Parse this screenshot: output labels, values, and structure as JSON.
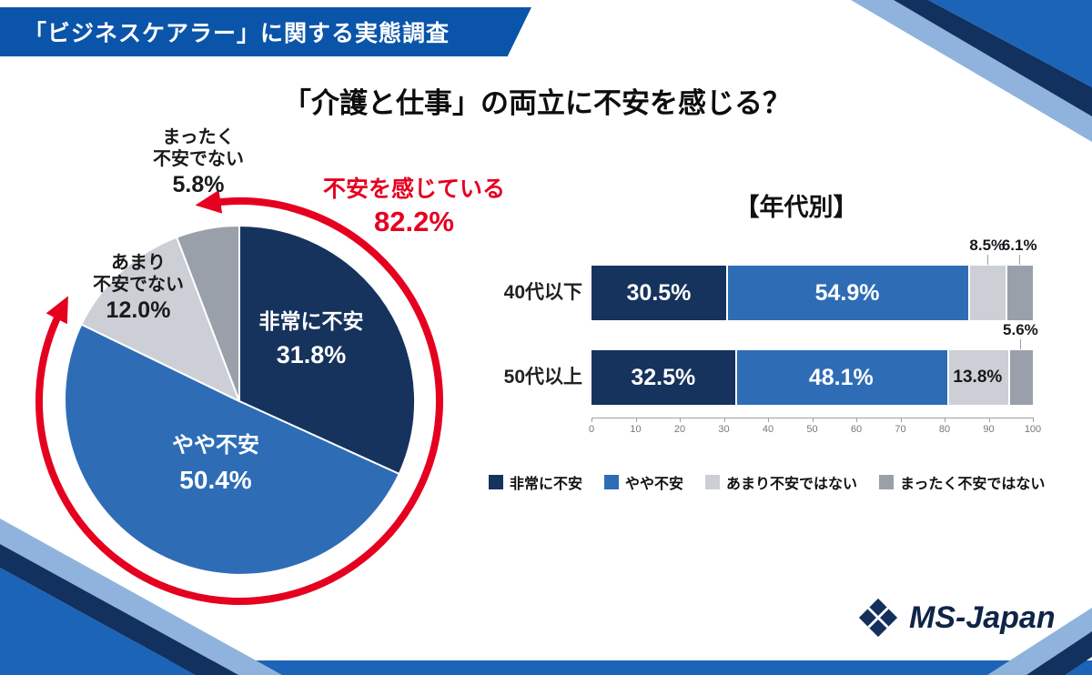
{
  "banner": {
    "title": "「ビジネスケアラー」に関する実態調査"
  },
  "theme": {
    "banner_blue": "#0a55aa",
    "deco_blue": "#1c64b7",
    "deco_navy": "#12315e",
    "deco_light": "#8fb3dc",
    "accent_red": "#e50020",
    "logo_navy": "#0f2547"
  },
  "chart_data": [
    {
      "type": "pie",
      "title": "「介護と仕事」の両立に不安を感じる？",
      "labels": [
        "非常に不安",
        "やや不安",
        "あまり不安でない",
        "まったく不安でない"
      ],
      "label_lines": [
        [
          "非常に不安"
        ],
        [
          "やや不安"
        ],
        [
          "あまり",
          "不安でない"
        ],
        [
          "まったく",
          "不安でない"
        ]
      ],
      "values": [
        31.8,
        50.4,
        12.0,
        5.8
      ],
      "value_labels": [
        "31.8%",
        "50.4%",
        "12.0%",
        "5.8%"
      ],
      "colors": [
        "#16335d",
        "#2e6db6",
        "#ccd0d6",
        "#9aa0aa"
      ],
      "start_angle_deg": 0,
      "direction": "clockwise",
      "annotation": {
        "label": "不安を感じている",
        "value": "82.2%",
        "color": "#e50020",
        "covers_values": [
          31.8,
          50.4
        ]
      }
    },
    {
      "type": "stacked-bar",
      "title": "【年代別】",
      "categories": [
        "40代以下",
        "50代以上"
      ],
      "series": [
        {
          "name": "非常に不安",
          "color": "#16335d",
          "values": [
            30.5,
            32.5
          ]
        },
        {
          "name": "やや不安",
          "color": "#2e6db6",
          "values": [
            54.9,
            48.1
          ]
        },
        {
          "name": "あまり不安ではない",
          "color": "#ccd0d6",
          "values": [
            8.5,
            13.8
          ]
        },
        {
          "name": "まったく不安ではない",
          "color": "#9aa0aa",
          "values": [
            6.1,
            5.6
          ]
        }
      ],
      "xlim": [
        0,
        100
      ],
      "x_ticks": [
        0,
        10,
        20,
        30,
        40,
        50,
        60,
        70,
        80,
        90,
        100
      ],
      "legend_position": "bottom",
      "grid": false
    }
  ],
  "logo": {
    "text": "MS-Japan"
  }
}
